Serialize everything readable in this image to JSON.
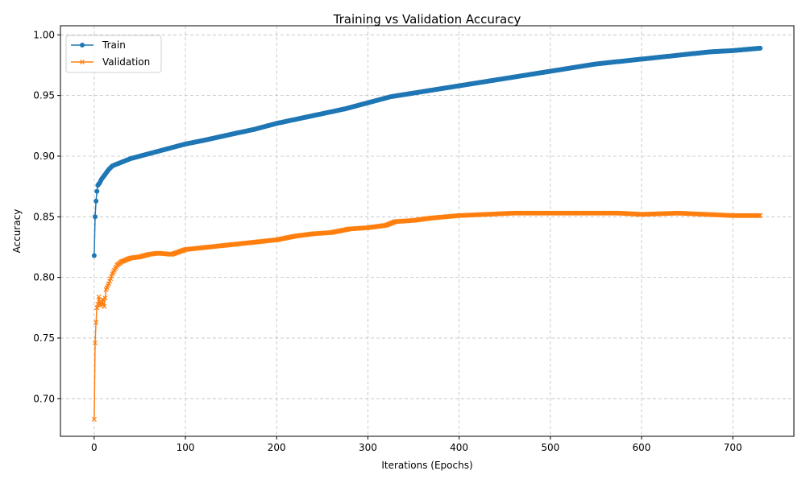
{
  "chart_data": {
    "type": "line",
    "title": "Training vs Validation Accuracy",
    "xlabel": "Iterations (Epochs)",
    "ylabel": "Accuracy",
    "xlim": [
      -37,
      767
    ],
    "ylim": [
      0.669,
      1.0075
    ],
    "xticks": [
      0,
      100,
      200,
      300,
      400,
      500,
      600,
      700
    ],
    "yticks": [
      0.7,
      0.75,
      0.8,
      0.85,
      0.9,
      0.95,
      1.0
    ],
    "xtick_labels": [
      "0",
      "100",
      "200",
      "300",
      "400",
      "500",
      "600",
      "700"
    ],
    "ytick_labels": [
      "0.70",
      "0.75",
      "0.80",
      "0.85",
      "0.90",
      "0.95",
      "1.00"
    ],
    "grid": true,
    "legend_position": "top-left",
    "series": [
      {
        "name": "Train",
        "color": "#1f77b4",
        "marker": "circle",
        "keypoints": [
          [
            0,
            0.818
          ],
          [
            1,
            0.85
          ],
          [
            2,
            0.863
          ],
          [
            3,
            0.871
          ],
          [
            4,
            0.876
          ],
          [
            6,
            0.878
          ],
          [
            8,
            0.881
          ],
          [
            10,
            0.883
          ],
          [
            13,
            0.886
          ],
          [
            16,
            0.889
          ],
          [
            20,
            0.892
          ],
          [
            30,
            0.895
          ],
          [
            40,
            0.898
          ],
          [
            50,
            0.9
          ],
          [
            60,
            0.902
          ],
          [
            75,
            0.905
          ],
          [
            90,
            0.908
          ],
          [
            100,
            0.91
          ],
          [
            120,
            0.913
          ],
          [
            150,
            0.918
          ],
          [
            175,
            0.922
          ],
          [
            200,
            0.927
          ],
          [
            225,
            0.931
          ],
          [
            250,
            0.935
          ],
          [
            275,
            0.939
          ],
          [
            300,
            0.944
          ],
          [
            325,
            0.949
          ],
          [
            350,
            0.952
          ],
          [
            375,
            0.955
          ],
          [
            400,
            0.958
          ],
          [
            425,
            0.961
          ],
          [
            450,
            0.964
          ],
          [
            475,
            0.967
          ],
          [
            500,
            0.97
          ],
          [
            525,
            0.973
          ],
          [
            550,
            0.976
          ],
          [
            575,
            0.978
          ],
          [
            600,
            0.98
          ],
          [
            625,
            0.982
          ],
          [
            650,
            0.984
          ],
          [
            675,
            0.986
          ],
          [
            700,
            0.987
          ],
          [
            730,
            0.989
          ]
        ]
      },
      {
        "name": "Validation",
        "color": "#ff7f0e",
        "marker": "x",
        "keypoints": [
          [
            0,
            0.683
          ],
          [
            1,
            0.746
          ],
          [
            2,
            0.763
          ],
          [
            3,
            0.775
          ],
          [
            4,
            0.778
          ],
          [
            5,
            0.784
          ],
          [
            6,
            0.78
          ],
          [
            7,
            0.777
          ],
          [
            8,
            0.779
          ],
          [
            9,
            0.782
          ],
          [
            10,
            0.778
          ],
          [
            11,
            0.776
          ],
          [
            13,
            0.79
          ],
          [
            16,
            0.795
          ],
          [
            20,
            0.803
          ],
          [
            25,
            0.81
          ],
          [
            30,
            0.813
          ],
          [
            40,
            0.816
          ],
          [
            50,
            0.817
          ],
          [
            60,
            0.819
          ],
          [
            70,
            0.82
          ],
          [
            85,
            0.819
          ],
          [
            100,
            0.823
          ],
          [
            125,
            0.825
          ],
          [
            150,
            0.827
          ],
          [
            175,
            0.829
          ],
          [
            200,
            0.831
          ],
          [
            220,
            0.834
          ],
          [
            240,
            0.836
          ],
          [
            260,
            0.837
          ],
          [
            280,
            0.84
          ],
          [
            300,
            0.841
          ],
          [
            320,
            0.843
          ],
          [
            330,
            0.846
          ],
          [
            350,
            0.847
          ],
          [
            370,
            0.849
          ],
          [
            400,
            0.851
          ],
          [
            430,
            0.852
          ],
          [
            460,
            0.853
          ],
          [
            500,
            0.853
          ],
          [
            540,
            0.853
          ],
          [
            575,
            0.853
          ],
          [
            600,
            0.852
          ],
          [
            640,
            0.853
          ],
          [
            670,
            0.852
          ],
          [
            700,
            0.851
          ],
          [
            730,
            0.851
          ]
        ]
      }
    ]
  }
}
